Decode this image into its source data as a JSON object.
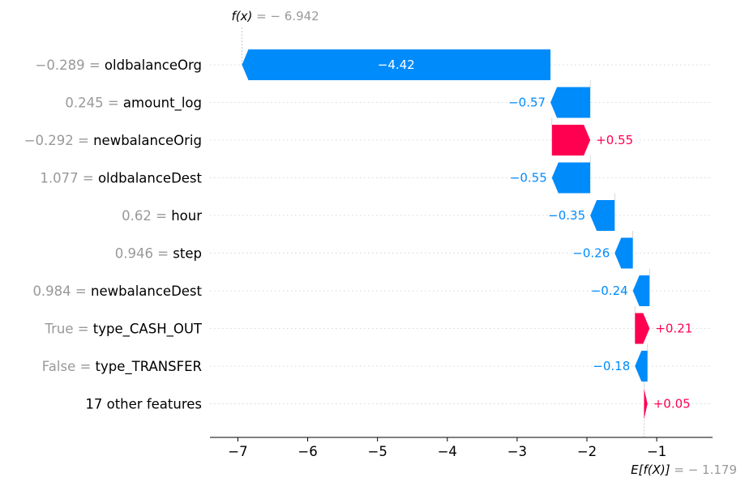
{
  "chart_data": {
    "type": "waterfall",
    "fx_label": "f(x) = − 6.942",
    "fx_value": -6.942,
    "base_label": "E[f(X)] = − 1.179",
    "base_value": -1.179,
    "xlim": [
      -7.4,
      -0.2
    ],
    "xticks": [
      {
        "value": -7,
        "label": "−7"
      },
      {
        "value": -6,
        "label": "−6"
      },
      {
        "value": -5,
        "label": "−5"
      },
      {
        "value": -4,
        "label": "−4"
      },
      {
        "value": -3,
        "label": "−3"
      },
      {
        "value": -2,
        "label": "−2"
      },
      {
        "value": -1,
        "label": "−1"
      }
    ],
    "features": [
      {
        "value_text": "−0.289",
        "name": "oldbalanceOrg",
        "contribution": -4.42,
        "label": "−4.42",
        "end": -6.942
      },
      {
        "value_text": "0.245",
        "name": "amount_log",
        "contribution": -0.57,
        "label": "−0.57",
        "end": -2.522
      },
      {
        "value_text": "−0.292",
        "name": "newbalanceOrig",
        "contribution": 0.55,
        "label": "+0.55",
        "end": -1.952
      },
      {
        "value_text": "1.077",
        "name": "oldbalanceDest",
        "contribution": -0.55,
        "label": "−0.55",
        "end": -2.502
      },
      {
        "value_text": "0.62",
        "name": "hour",
        "contribution": -0.35,
        "label": "−0.35",
        "end": -1.952
      },
      {
        "value_text": "0.946",
        "name": "step",
        "contribution": -0.26,
        "label": "−0.26",
        "end": -1.602
      },
      {
        "value_text": "0.984",
        "name": "newbalanceDest",
        "contribution": -0.24,
        "label": "−0.24",
        "end": -1.342
      },
      {
        "value_text": "True",
        "name": "type_CASH_OUT",
        "contribution": 0.21,
        "label": "+0.21",
        "end": -1.102
      },
      {
        "value_text": "False",
        "name": "type_TRANSFER",
        "contribution": -0.18,
        "label": "−0.18",
        "end": -1.312
      },
      {
        "value_text": "",
        "name": "17 other features",
        "contribution": 0.05,
        "label": "+0.05",
        "end": -1.132
      }
    ],
    "colors": {
      "negative": "#008bfb",
      "positive": "#ff0051",
      "inside_label": "#ffffff"
    }
  }
}
